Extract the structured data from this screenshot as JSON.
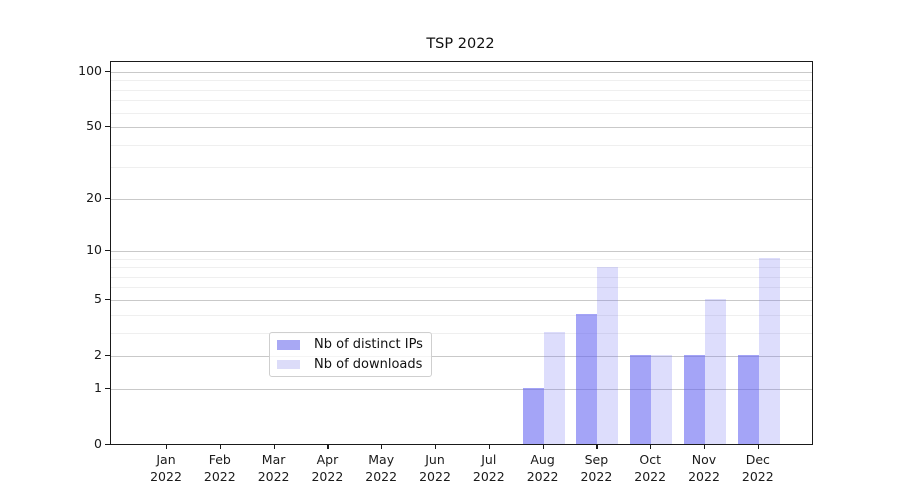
{
  "title": "TSP 2022",
  "chart_data": {
    "type": "bar",
    "title": "TSP 2022",
    "categories": [
      "Jan 2022",
      "Feb 2022",
      "Mar 2022",
      "Apr 2022",
      "May 2022",
      "Jun 2022",
      "Jul 2022",
      "Aug 2022",
      "Sep 2022",
      "Oct 2022",
      "Nov 2022",
      "Dec 2022"
    ],
    "series": [
      {
        "name": "Nb of distinct IPs",
        "color": "#a8a8f4",
        "values": [
          0,
          0,
          0,
          0,
          0,
          0,
          0,
          1,
          4,
          2,
          2,
          2
        ]
      },
      {
        "name": "Nb of downloads",
        "color": "#dcdcf9",
        "values": [
          0,
          0,
          0,
          0,
          0,
          0,
          0,
          3,
          8,
          2,
          5,
          9
        ]
      }
    ],
    "xlabel": "",
    "ylabel": "",
    "yscale": "log1p",
    "ylim": [
      0,
      110
    ],
    "y_major_ticks": [
      0,
      1,
      2,
      5,
      10,
      20,
      50,
      100
    ],
    "y_minor_ticks": [
      3,
      4,
      6,
      7,
      8,
      9,
      30,
      40,
      60,
      70,
      80,
      90
    ],
    "grid": "on",
    "legend_position": "bottom-center-inside"
  },
  "legend": {
    "items": [
      {
        "label": "Nb of distinct IPs"
      },
      {
        "label": "Nb of downloads"
      }
    ]
  }
}
